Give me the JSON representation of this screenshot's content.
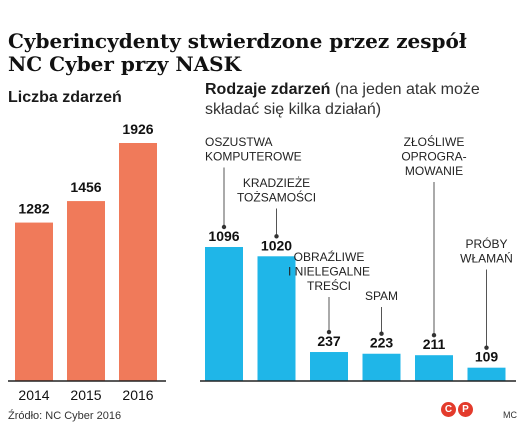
{
  "title_lines": [
    "Cyberincydenty stwierdzone przez zespół",
    "NC Cyber przy NASK"
  ],
  "source": "Źródło: NC Cyber 2016",
  "logo_letters": [
    "C",
    "P"
  ],
  "author": "MC",
  "colors": {
    "left_bars": "#f07a5a",
    "right_bars": "#1fb6e8",
    "axis": "#222222",
    "leader": "#555555"
  },
  "chart_data": [
    {
      "type": "bar",
      "title": "Liczba zdarzeń",
      "categories": [
        "2014",
        "2015",
        "2016"
      ],
      "values": [
        1282,
        1456,
        1926
      ],
      "ylim": [
        0,
        1926
      ],
      "grid": false
    },
    {
      "type": "bar",
      "title": "Rodzaje zdarzeń",
      "subtitle": "(na jeden atak może składać się kilka działań)",
      "categories": [
        {
          "lines": [
            "OSZUSTWA",
            "KOMPUTEROWE"
          ]
        },
        {
          "lines": [
            "KRADZIEŻE",
            "TOŻSAMOŚCI"
          ]
        },
        {
          "lines": [
            "OBRAŹLIWE",
            "I NIELEGALNE",
            "TREŚCI"
          ]
        },
        {
          "lines": [
            "SPAM"
          ]
        },
        {
          "lines": [
            "ZŁOŚLIWE",
            "OPROGRA-",
            "MOWANIE"
          ]
        },
        {
          "lines": [
            "PRÓBY",
            "WŁAMAŃ"
          ]
        }
      ],
      "values": [
        1096,
        1020,
        237,
        223,
        211,
        109
      ],
      "ylim": [
        0,
        1096
      ],
      "grid": false
    }
  ]
}
